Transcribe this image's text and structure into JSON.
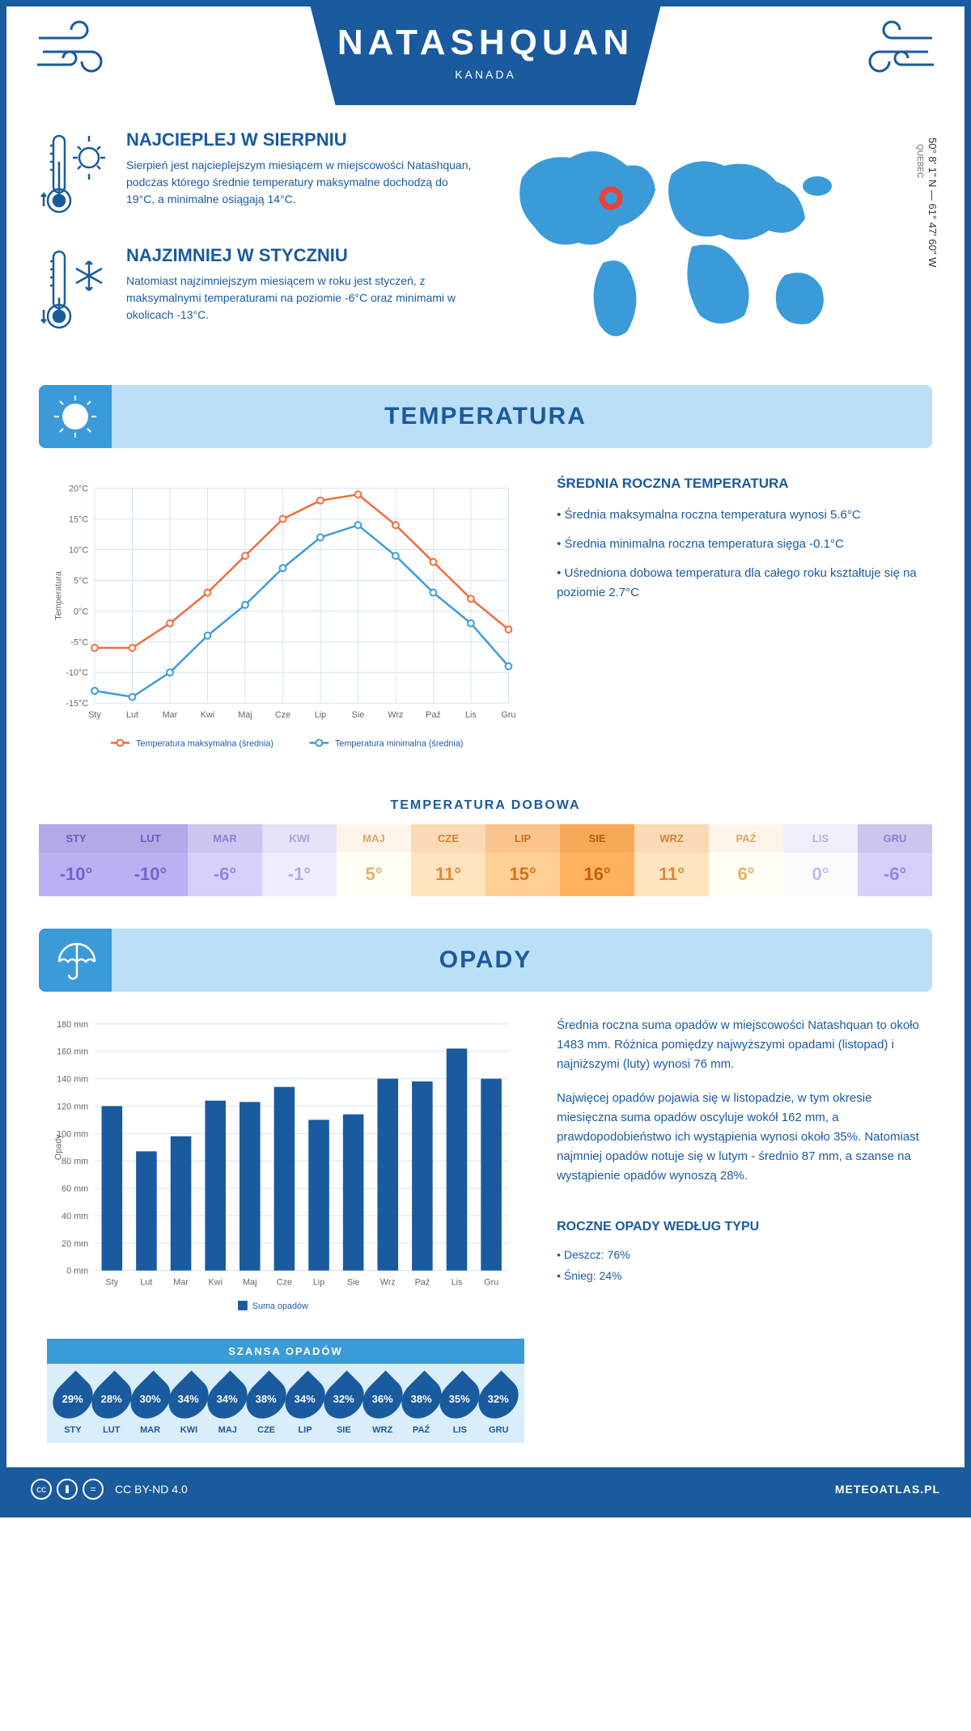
{
  "header": {
    "title": "NATASHQUAN",
    "subtitle": "KANADA"
  },
  "coords": "50° 8' 1\" N — 61° 47' 60\" W",
  "region": "QUEBEC",
  "facts": {
    "warm": {
      "title": "NAJCIEPLEJ W SIERPNIU",
      "text": "Sierpień jest najcieplejszym miesiącem w miejscowości Natashquan, podczas którego średnie temperatury maksymalne dochodzą do 19°C, a minimalne osiągają 14°C."
    },
    "cold": {
      "title": "NAJZIMNIEJ W STYCZNIU",
      "text": "Natomiast najzimniejszym miesiącem w roku jest styczeń, z maksymalnymi temperaturami na poziomie -6°C oraz minimami w okolicach -13°C."
    }
  },
  "sections": {
    "temp": "TEMPERATURA",
    "precip": "OPADY"
  },
  "months": [
    "Sty",
    "Lut",
    "Mar",
    "Kwi",
    "Maj",
    "Cze",
    "Lip",
    "Sie",
    "Wrz",
    "Paź",
    "Lis",
    "Gru"
  ],
  "months_upper": [
    "STY",
    "LUT",
    "MAR",
    "KWI",
    "MAJ",
    "CZE",
    "LIP",
    "SIE",
    "WRZ",
    "PAŹ",
    "LIS",
    "GRU"
  ],
  "temp_chart": {
    "type": "line",
    "ylabel": "Temperatura",
    "ylim": [
      -15,
      20
    ],
    "ytick_step": 5,
    "grid_color": "#d0e4f5",
    "series": [
      {
        "label": "Temperatura maksymalna (średnia)",
        "color": "#f26b3a",
        "values": [
          -6,
          -6,
          -2,
          3,
          9,
          15,
          18,
          19,
          14,
          8,
          2,
          -3
        ]
      },
      {
        "label": "Temperatura minimalna (średnia)",
        "color": "#3a9bd8",
        "values": [
          -13,
          -14,
          -10,
          -4,
          1,
          7,
          12,
          14,
          9,
          3,
          -2,
          -9
        ]
      }
    ]
  },
  "temp_annual": {
    "title": "ŚREDNIA ROCZNA TEMPERATURA",
    "items": [
      "Średnia maksymalna roczna temperatura wynosi 5.6°C",
      "Średnia minimalna roczna temperatura sięga -0.1°C",
      "Uśredniona dobowa temperatura dla całego roku kształtuje się na poziomie 2.7°C"
    ]
  },
  "daily_temp": {
    "title": "TEMPERATURA DOBOWA",
    "values": [
      "-10°",
      "-10°",
      "-6°",
      "-1°",
      "5°",
      "11°",
      "15°",
      "16°",
      "11°",
      "6°",
      "0°",
      "-6°"
    ],
    "bg_colors": [
      "#b3a8e8",
      "#b3a8e8",
      "#cdc5f0",
      "#e5e1f7",
      "#fdf4e9",
      "#fbd9b4",
      "#f9c58d",
      "#f7a95a",
      "#fbd9b4",
      "#fdf4e9",
      "#f0eefb",
      "#cdc5f0"
    ],
    "text_colors": [
      "#6a5ec2",
      "#6a5ec2",
      "#8a80d4",
      "#a9a1e2",
      "#d9a662",
      "#d08436",
      "#c66f1a",
      "#b85c08",
      "#d08436",
      "#d9a662",
      "#b7b0e5",
      "#8a80d4"
    ]
  },
  "precip_chart": {
    "type": "bar",
    "ylabel": "Opady",
    "ylim": [
      0,
      180
    ],
    "ytick_step": 20,
    "bar_color": "#1a5a9e",
    "legend": "Suma opadów",
    "values": [
      120,
      87,
      98,
      124,
      123,
      134,
      110,
      114,
      140,
      138,
      162,
      140
    ]
  },
  "precip_text": {
    "p1": "Średnia roczna suma opadów w miejscowości Natashquan to około 1483 mm. Różnica pomiędzy najwyższymi opadami (listopad) i najniższymi (luty) wynosi 76 mm.",
    "p2": "Najwięcej opadów pojawia się w listopadzie, w tym okresie miesięczna suma opadów oscyluje wokół 162 mm, a prawdopodobieństwo ich wystąpienia wynosi około 35%. Natomiast najmniej opadów notuje się w lutym - średnio 87 mm, a szanse na wystąpienie opadów wynoszą 28%."
  },
  "rain_chance": {
    "title": "SZANSA OPADÓW",
    "values": [
      "29%",
      "28%",
      "30%",
      "34%",
      "34%",
      "38%",
      "34%",
      "32%",
      "36%",
      "38%",
      "35%",
      "32%"
    ]
  },
  "precip_type": {
    "title": "ROCZNE OPADY WEDŁUG TYPU",
    "rain": "• Deszcz: 76%",
    "snow": "• Śnieg: 24%"
  },
  "footer": {
    "license": "CC BY-ND 4.0",
    "site": "METEOATLAS.PL"
  },
  "colors": {
    "primary": "#1a5a9e",
    "light": "#bcdff8",
    "accent": "#3a9bd8"
  }
}
